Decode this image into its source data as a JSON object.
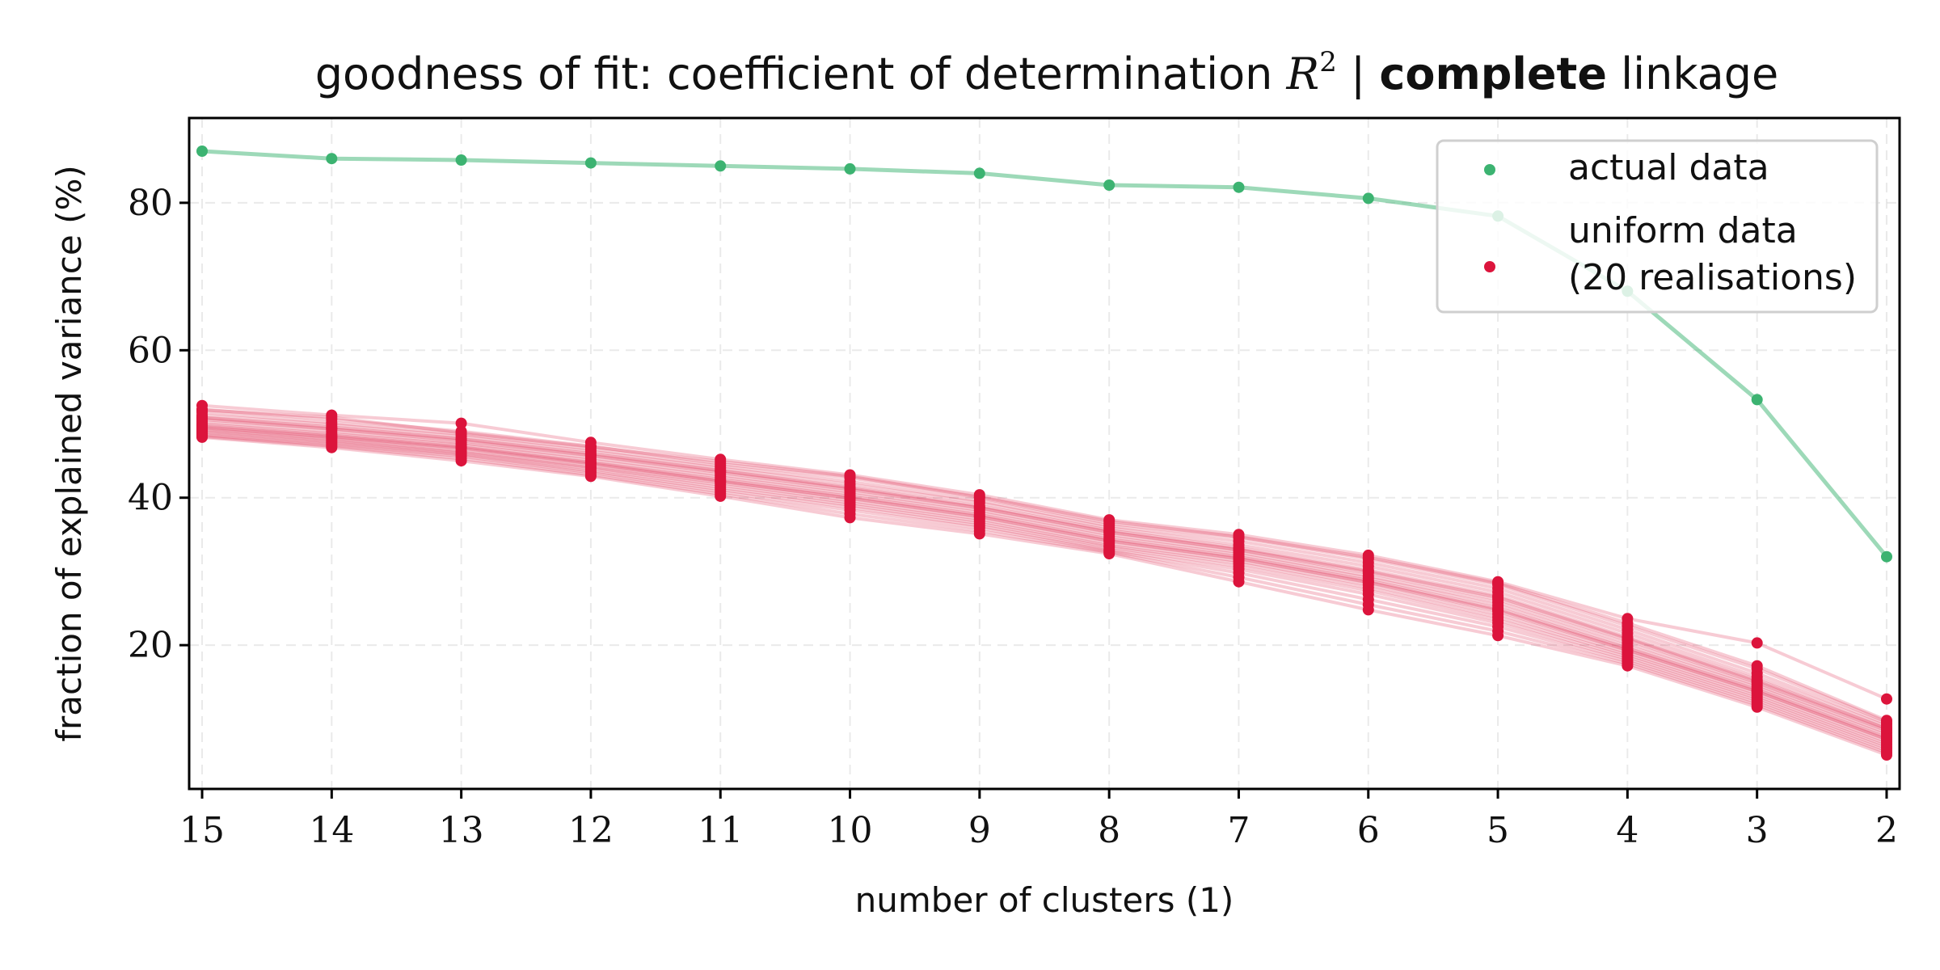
{
  "chart_data": {
    "type": "line",
    "title": {
      "prefix": "goodness of fit: coefficient of determination ",
      "math_symbol": "R",
      "math_superscript": "2",
      "separator": " | ",
      "bold": "complete",
      "suffix": " linkage"
    },
    "xlabel": "number of clusters (1)",
    "ylabel": "fraction of explained variance (%)",
    "x": [
      15,
      14,
      13,
      12,
      11,
      10,
      9,
      8,
      7,
      6,
      5,
      4,
      3,
      2
    ],
    "x_direction": "descending",
    "xlim": [
      15.1,
      1.9
    ],
    "ylim": [
      0.5,
      91.5
    ],
    "yticks": [
      20,
      40,
      60,
      80
    ],
    "grid": true,
    "legend_position": "top-right",
    "colors": {
      "actual": "#3cb371",
      "uniform": "#dc143c"
    },
    "legend": [
      {
        "label": "actual data",
        "color": "#3cb371"
      },
      {
        "label": "uniform data\n(20 realisations)",
        "color": "#dc143c"
      }
    ],
    "series": [
      {
        "name": "actual data",
        "values": [
          87.0,
          86.0,
          85.8,
          85.4,
          85.0,
          84.6,
          84.0,
          82.4,
          82.1,
          80.6,
          78.2,
          68.0,
          53.3,
          32.0
        ]
      }
    ],
    "uniform_realisations": [
      [
        52.5,
        51.2,
        50.1,
        47.5,
        45.2,
        43.1,
        40.4,
        37.0,
        35.0,
        32.2,
        28.6,
        23.6,
        20.3,
        12.7
      ],
      [
        52.0,
        50.6,
        49.0,
        47.0,
        44.6,
        42.7,
        40.0,
        36.5,
        34.6,
        31.7,
        28.2,
        22.6,
        16.8,
        9.6
      ],
      [
        51.6,
        50.2,
        48.6,
        46.6,
        44.3,
        42.2,
        39.6,
        36.2,
        34.1,
        31.2,
        27.7,
        22.1,
        16.2,
        9.3
      ],
      [
        51.2,
        49.9,
        48.3,
        46.3,
        44.0,
        41.8,
        39.3,
        35.9,
        33.6,
        30.7,
        27.2,
        21.6,
        15.7,
        9.0
      ],
      [
        50.9,
        49.6,
        48.0,
        46.0,
        43.7,
        41.4,
        38.9,
        35.6,
        33.2,
        30.2,
        26.7,
        21.1,
        15.3,
        8.7
      ],
      [
        50.6,
        49.3,
        47.7,
        45.7,
        43.4,
        41.1,
        38.6,
        35.3,
        32.9,
        29.8,
        26.2,
        20.7,
        14.9,
        8.4
      ],
      [
        50.3,
        49.0,
        47.4,
        45.4,
        43.1,
        40.8,
        38.3,
        35.0,
        32.6,
        29.4,
        25.8,
        20.3,
        14.6,
        8.1
      ],
      [
        50.0,
        48.7,
        47.2,
        45.1,
        42.8,
        40.5,
        38.0,
        34.7,
        32.3,
        29.1,
        25.4,
        19.9,
        14.3,
        7.8
      ],
      [
        49.8,
        48.5,
        46.9,
        44.8,
        42.5,
        40.2,
        37.7,
        34.4,
        32.0,
        28.8,
        25.0,
        19.6,
        14.0,
        7.5
      ],
      [
        49.5,
        48.2,
        46.7,
        44.6,
        42.2,
        39.9,
        37.4,
        34.1,
        31.7,
        28.5,
        24.6,
        19.3,
        13.7,
        7.2
      ],
      [
        49.3,
        48.0,
        46.4,
        44.3,
        42.0,
        39.6,
        37.1,
        33.8,
        31.4,
        28.2,
        24.2,
        19.0,
        13.4,
        6.9
      ],
      [
        49.1,
        47.8,
        46.2,
        44.1,
        41.7,
        39.3,
        36.8,
        33.5,
        31.1,
        27.8,
        23.8,
        18.7,
        13.1,
        6.6
      ],
      [
        48.9,
        47.6,
        46.0,
        43.9,
        41.4,
        39.0,
        36.5,
        33.3,
        30.7,
        27.4,
        23.4,
        18.4,
        12.8,
        6.3
      ],
      [
        48.7,
        47.4,
        45.8,
        43.6,
        41.1,
        38.7,
        36.2,
        33.0,
        30.3,
        26.9,
        23.0,
        18.1,
        12.5,
        6.0
      ],
      [
        48.5,
        47.2,
        45.6,
        43.4,
        40.8,
        38.3,
        35.9,
        32.8,
        29.8,
        26.2,
        22.5,
        17.8,
        12.2,
        5.7
      ],
      [
        48.3,
        47.0,
        45.3,
        43.1,
        40.5,
        37.8,
        35.5,
        32.6,
        29.2,
        25.5,
        21.9,
        17.5,
        11.9,
        5.4
      ],
      [
        48.2,
        46.8,
        45.0,
        42.9,
        40.2,
        37.3,
        35.1,
        32.4,
        28.6,
        24.8,
        21.3,
        17.2,
        11.6,
        5.1
      ],
      [
        51.9,
        50.9,
        48.8,
        46.9,
        44.9,
        42.9,
        40.1,
        36.8,
        34.7,
        31.9,
        28.4,
        23.0,
        17.2,
        9.8
      ],
      [
        50.8,
        49.4,
        47.9,
        45.8,
        43.6,
        41.3,
        38.7,
        35.4,
        33.0,
        30.0,
        26.5,
        20.9,
        15.1,
        8.6
      ],
      [
        49.6,
        48.3,
        46.8,
        44.7,
        42.3,
        40.0,
        37.5,
        34.2,
        31.8,
        28.6,
        24.8,
        19.4,
        13.8,
        7.3
      ]
    ]
  }
}
